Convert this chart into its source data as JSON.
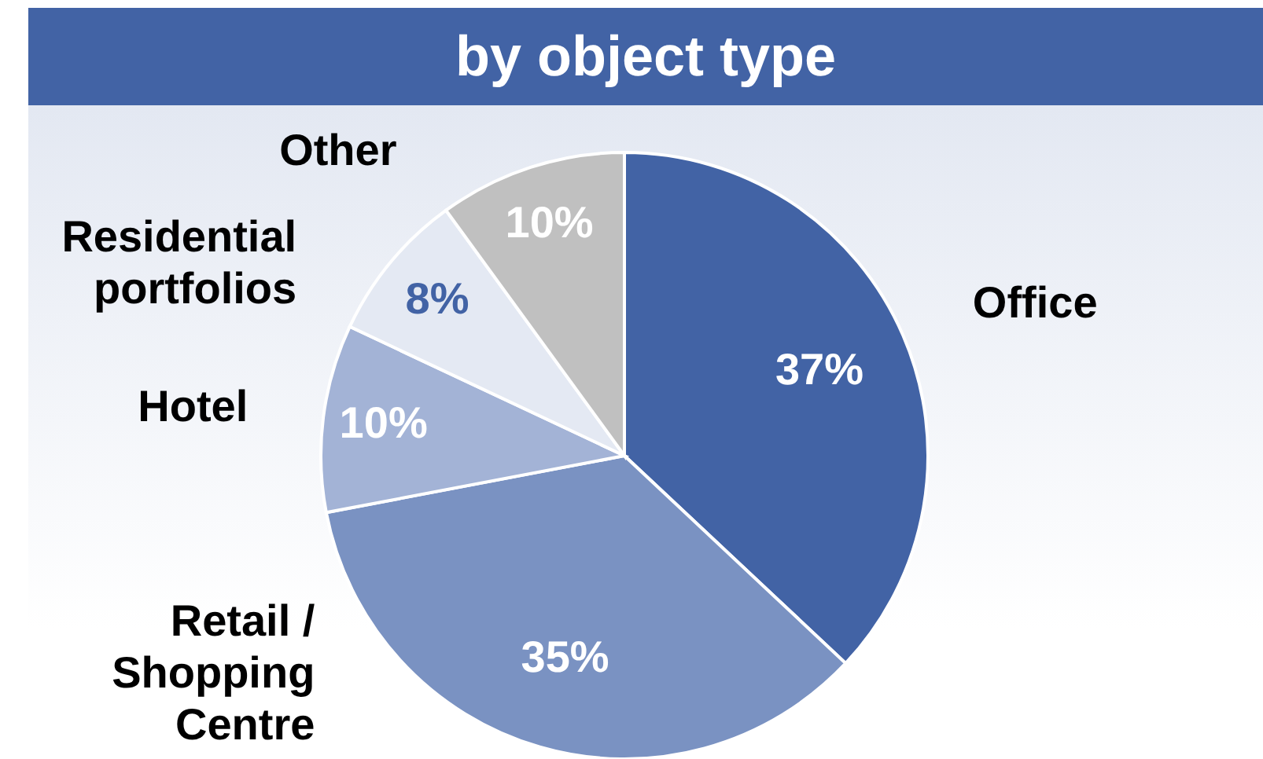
{
  "chart_data": {
    "type": "pie",
    "title": "by object type",
    "categories": [
      "Office",
      "Retail / Shopping Centre",
      "Hotel",
      "Residential portfolios",
      "Other"
    ],
    "values": [
      37,
      35,
      10,
      8,
      10
    ],
    "colors": [
      "#4263a5",
      "#7a92c2",
      "#a3b3d6",
      "#e4e9f3",
      "#c0c0c0"
    ],
    "value_labels": [
      "37%",
      "35%",
      "10%",
      "8%",
      "10%"
    ]
  }
}
